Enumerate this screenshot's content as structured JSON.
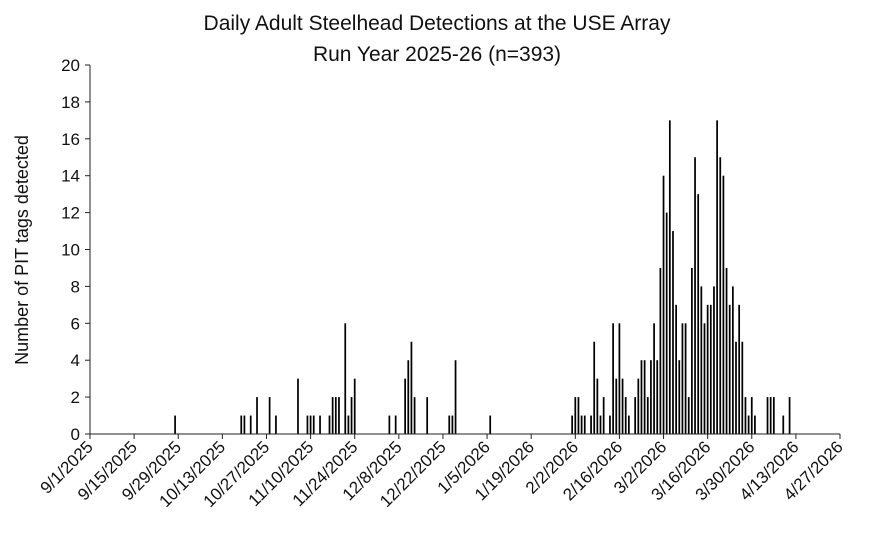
{
  "chart_data": {
    "type": "bar",
    "title": "Daily Adult Steelhead Detections at the USE Array",
    "subtitle": "Run Year 2025-26 (n=393)",
    "xlabel": "",
    "ylabel": "Number of PIT tags detected",
    "ylim": [
      0,
      20
    ],
    "yticks": [
      0,
      2,
      4,
      6,
      8,
      10,
      12,
      14,
      16,
      18,
      20
    ],
    "xlim": [
      "2025-09-01",
      "2026-04-27"
    ],
    "xtick_labels": [
      "9/1/2025",
      "9/15/2025",
      "9/29/2025",
      "10/13/2025",
      "10/27/2025",
      "11/10/2025",
      "11/24/2025",
      "12/8/2025",
      "12/22/2025",
      "1/5/2026",
      "1/19/2026",
      "2/2/2026",
      "2/16/2026",
      "3/2/2026",
      "3/16/2026",
      "3/30/2026",
      "4/13/2026",
      "4/27/2026"
    ],
    "grid": false,
    "bar_color": "#000000",
    "series": [
      {
        "values": [
          {
            "date": "2025-09-28",
            "y": 1
          },
          {
            "date": "2025-10-19",
            "y": 1
          },
          {
            "date": "2025-10-20",
            "y": 1
          },
          {
            "date": "2025-10-22",
            "y": 1
          },
          {
            "date": "2025-10-24",
            "y": 2
          },
          {
            "date": "2025-10-28",
            "y": 2
          },
          {
            "date": "2025-10-30",
            "y": 1
          },
          {
            "date": "2025-11-06",
            "y": 3
          },
          {
            "date": "2025-11-09",
            "y": 1
          },
          {
            "date": "2025-11-10",
            "y": 1
          },
          {
            "date": "2025-11-11",
            "y": 1
          },
          {
            "date": "2025-11-13",
            "y": 1
          },
          {
            "date": "2025-11-16",
            "y": 1
          },
          {
            "date": "2025-11-17",
            "y": 2
          },
          {
            "date": "2025-11-18",
            "y": 2
          },
          {
            "date": "2025-11-19",
            "y": 2
          },
          {
            "date": "2025-11-21",
            "y": 6
          },
          {
            "date": "2025-11-22",
            "y": 1
          },
          {
            "date": "2025-11-23",
            "y": 2
          },
          {
            "date": "2025-11-24",
            "y": 3
          },
          {
            "date": "2025-12-05",
            "y": 1
          },
          {
            "date": "2025-12-07",
            "y": 1
          },
          {
            "date": "2025-12-10",
            "y": 3
          },
          {
            "date": "2025-12-11",
            "y": 4
          },
          {
            "date": "2025-12-12",
            "y": 5
          },
          {
            "date": "2025-12-13",
            "y": 2
          },
          {
            "date": "2025-12-17",
            "y": 2
          },
          {
            "date": "2025-12-24",
            "y": 1
          },
          {
            "date": "2025-12-25",
            "y": 1
          },
          {
            "date": "2025-12-26",
            "y": 4
          },
          {
            "date": "2026-01-06",
            "y": 1
          },
          {
            "date": "2026-02-01",
            "y": 1
          },
          {
            "date": "2026-02-02",
            "y": 2
          },
          {
            "date": "2026-02-03",
            "y": 2
          },
          {
            "date": "2026-02-04",
            "y": 1
          },
          {
            "date": "2026-02-05",
            "y": 1
          },
          {
            "date": "2026-02-07",
            "y": 1
          },
          {
            "date": "2026-02-08",
            "y": 5
          },
          {
            "date": "2026-02-09",
            "y": 3
          },
          {
            "date": "2026-02-10",
            "y": 1
          },
          {
            "date": "2026-02-11",
            "y": 2
          },
          {
            "date": "2026-02-13",
            "y": 1
          },
          {
            "date": "2026-02-14",
            "y": 6
          },
          {
            "date": "2026-02-15",
            "y": 3
          },
          {
            "date": "2026-02-16",
            "y": 6
          },
          {
            "date": "2026-02-17",
            "y": 3
          },
          {
            "date": "2026-02-18",
            "y": 2
          },
          {
            "date": "2026-02-19",
            "y": 1
          },
          {
            "date": "2026-02-21",
            "y": 2
          },
          {
            "date": "2026-02-22",
            "y": 3
          },
          {
            "date": "2026-02-23",
            "y": 4
          },
          {
            "date": "2026-02-24",
            "y": 4
          },
          {
            "date": "2026-02-25",
            "y": 2
          },
          {
            "date": "2026-02-26",
            "y": 4
          },
          {
            "date": "2026-02-27",
            "y": 6
          },
          {
            "date": "2026-02-28",
            "y": 4
          },
          {
            "date": "2026-03-01",
            "y": 9
          },
          {
            "date": "2026-03-02",
            "y": 14
          },
          {
            "date": "2026-03-03",
            "y": 12
          },
          {
            "date": "2026-03-04",
            "y": 17
          },
          {
            "date": "2026-03-05",
            "y": 11
          },
          {
            "date": "2026-03-06",
            "y": 7
          },
          {
            "date": "2026-03-07",
            "y": 4
          },
          {
            "date": "2026-03-08",
            "y": 6
          },
          {
            "date": "2026-03-09",
            "y": 6
          },
          {
            "date": "2026-03-10",
            "y": 2
          },
          {
            "date": "2026-03-11",
            "y": 9
          },
          {
            "date": "2026-03-12",
            "y": 15
          },
          {
            "date": "2026-03-13",
            "y": 13
          },
          {
            "date": "2026-03-14",
            "y": 8
          },
          {
            "date": "2026-03-15",
            "y": 6
          },
          {
            "date": "2026-03-16",
            "y": 7
          },
          {
            "date": "2026-03-17",
            "y": 7
          },
          {
            "date": "2026-03-18",
            "y": 8
          },
          {
            "date": "2026-03-19",
            "y": 17
          },
          {
            "date": "2026-03-20",
            "y": 15
          },
          {
            "date": "2026-03-21",
            "y": 14
          },
          {
            "date": "2026-03-22",
            "y": 9
          },
          {
            "date": "2026-03-23",
            "y": 7
          },
          {
            "date": "2026-03-24",
            "y": 8
          },
          {
            "date": "2026-03-25",
            "y": 5
          },
          {
            "date": "2026-03-26",
            "y": 7
          },
          {
            "date": "2026-03-27",
            "y": 5
          },
          {
            "date": "2026-03-28",
            "y": 2
          },
          {
            "date": "2026-03-29",
            "y": 1
          },
          {
            "date": "2026-03-30",
            "y": 2
          },
          {
            "date": "2026-03-31",
            "y": 1
          },
          {
            "date": "2026-04-04",
            "y": 2
          },
          {
            "date": "2026-04-05",
            "y": 2
          },
          {
            "date": "2026-04-06",
            "y": 2
          },
          {
            "date": "2026-04-09",
            "y": 1
          },
          {
            "date": "2026-04-11",
            "y": 2
          }
        ]
      }
    ]
  }
}
